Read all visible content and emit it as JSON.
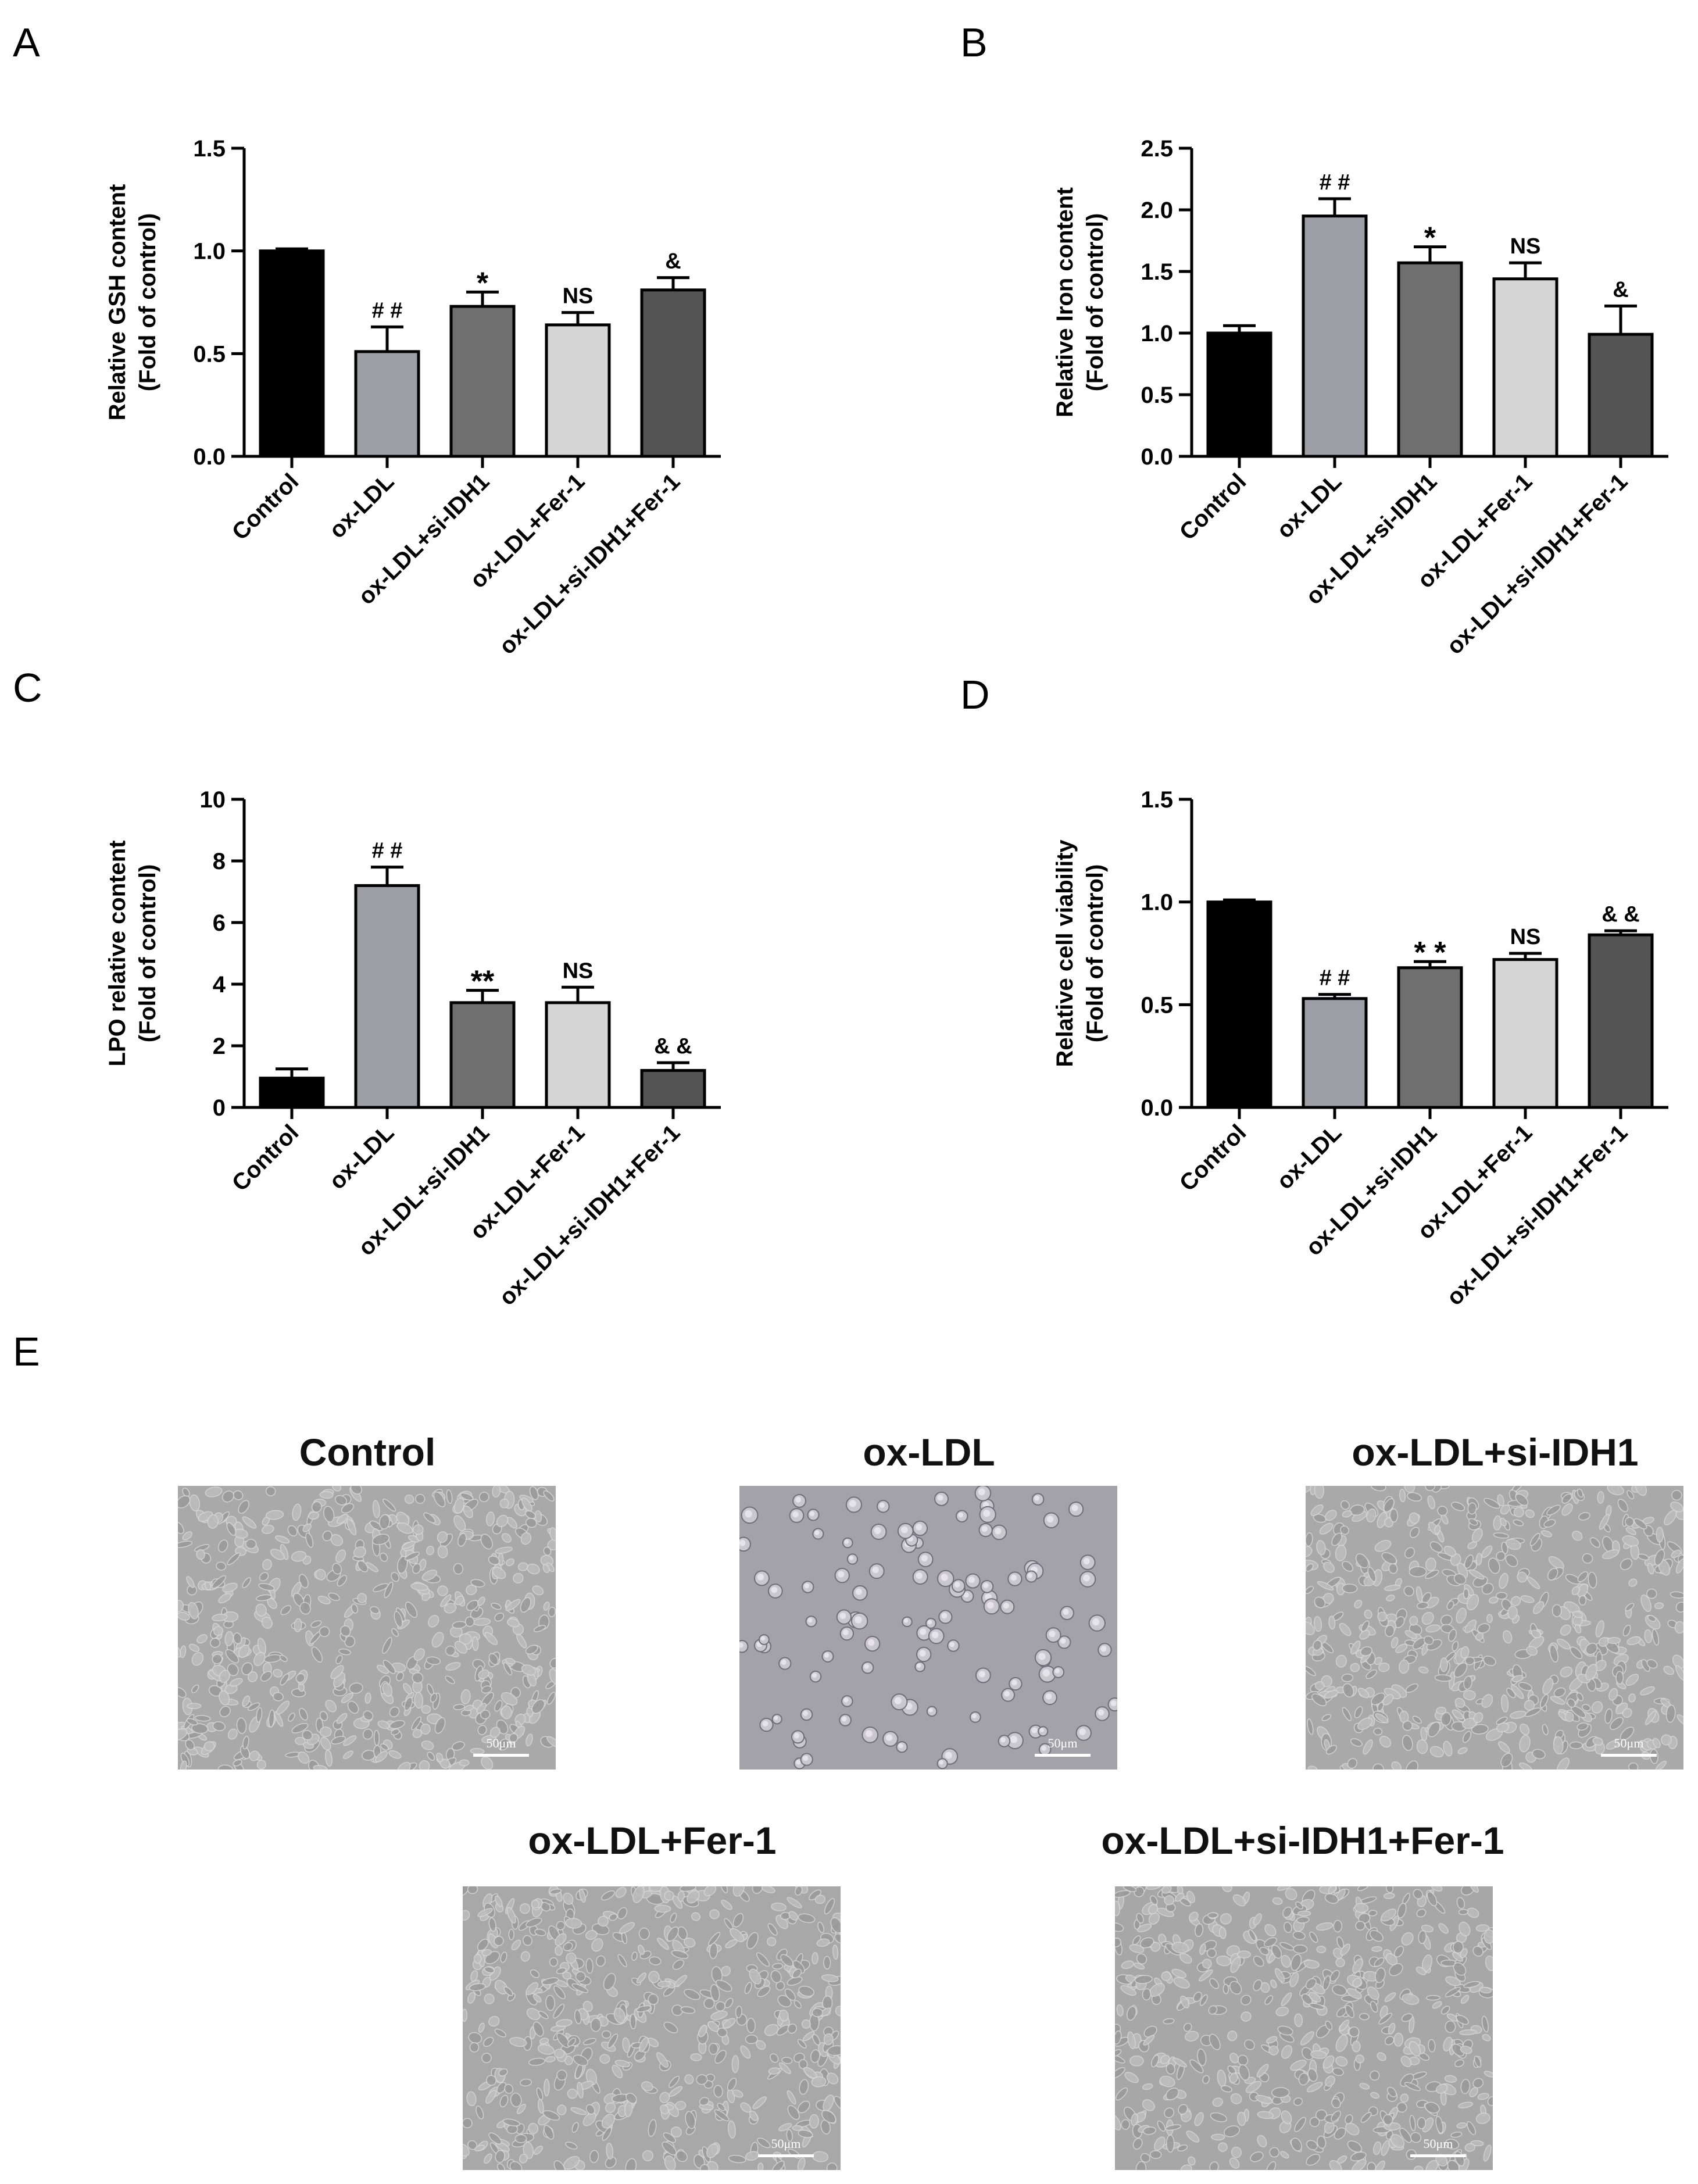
{
  "panels": {
    "A": "A",
    "B": "B",
    "C": "C",
    "D": "D",
    "E": "E"
  },
  "chart_data": [
    {
      "panel": "A",
      "type": "bar",
      "categories": [
        "Control",
        "ox-LDL",
        "ox-LDL+si-IDH1",
        "ox-LDL+Fer-1",
        "ox-LDL+si-IDH1+Fer-1"
      ],
      "values": [
        1.0,
        0.51,
        0.73,
        0.64,
        0.81
      ],
      "errors": [
        0.01,
        0.12,
        0.07,
        0.06,
        0.06
      ],
      "annotations": [
        "",
        "# #",
        "*",
        "NS",
        "&"
      ],
      "ylabel_line1": "Relative GSH content",
      "ylabel_line2": "(Fold of control)",
      "ylim": [
        0,
        1.5
      ],
      "yticks": [
        "0.0",
        "0.5",
        "1.0",
        "1.5"
      ],
      "colors": [
        "#000000",
        "#9e9ea7",
        "#6f6f6f",
        "#d5d5d5",
        "#545454"
      ]
    },
    {
      "panel": "B",
      "type": "bar",
      "categories": [
        "Control",
        "ox-LDL",
        "ox-LDL+si-IDH1",
        "ox-LDL+Fer-1",
        "ox-LDL+si-IDH1+Fer-1"
      ],
      "values": [
        1.0,
        1.95,
        1.57,
        1.44,
        0.99
      ],
      "errors": [
        0.06,
        0.14,
        0.13,
        0.13,
        0.23
      ],
      "annotations": [
        "",
        "# #",
        "*",
        "NS",
        "&"
      ],
      "ylabel_line1": "Relative Iron content",
      "ylabel_line2": "(Fold of control)",
      "ylim": [
        0,
        2.5
      ],
      "yticks": [
        "0.0",
        "0.5",
        "1.0",
        "1.5",
        "2.0",
        "2.5"
      ],
      "colors": [
        "#000000",
        "#9e9ea7",
        "#6f6f6f",
        "#d5d5d5",
        "#545454"
      ]
    },
    {
      "panel": "C",
      "type": "bar",
      "categories": [
        "Control",
        "ox-LDL",
        "ox-LDL+si-IDH1",
        "ox-LDL+Fer-1",
        "ox-LDL+si-IDH1+Fer-1"
      ],
      "values": [
        0.95,
        7.2,
        3.4,
        3.4,
        1.2
      ],
      "errors": [
        0.3,
        0.6,
        0.4,
        0.5,
        0.25
      ],
      "annotations": [
        "",
        "# #",
        "**",
        "NS",
        "& &"
      ],
      "ylabel_line1": "LPO relative content",
      "ylabel_line2": "(Fold of control)",
      "ylim": [
        0,
        10
      ],
      "yticks": [
        "0",
        "2",
        "4",
        "6",
        "8",
        "10"
      ],
      "colors": [
        "#000000",
        "#9e9ea7",
        "#6f6f6f",
        "#d5d5d5",
        "#545454"
      ]
    },
    {
      "panel": "D",
      "type": "bar",
      "categories": [
        "Control",
        "ox-LDL",
        "ox-LDL+si-IDH1",
        "ox-LDL+Fer-1",
        "ox-LDL+si-IDH1+Fer-1"
      ],
      "values": [
        1.0,
        0.53,
        0.68,
        0.72,
        0.84
      ],
      "errors": [
        0.01,
        0.02,
        0.03,
        0.03,
        0.02
      ],
      "annotations": [
        "",
        "# #",
        "* *",
        "NS",
        "& &"
      ],
      "ylabel_line1": "Relative cell viability",
      "ylabel_line2": "(Fold of control)",
      "ylim": [
        0,
        1.5
      ],
      "yticks": [
        "0.0",
        "0.5",
        "1.0",
        "1.5"
      ],
      "colors": [
        "#000000",
        "#9e9ea7",
        "#6f6f6f",
        "#d5d5d5",
        "#545454"
      ]
    }
  ],
  "micrographs": [
    {
      "title": "Control",
      "scale_label": "50μm",
      "density": "dense",
      "tone": "#a9a9a9"
    },
    {
      "title": "ox-LDL",
      "scale_label": "50μm",
      "density": "sparse",
      "tone": "#a3a2a9"
    },
    {
      "title": "ox-LDL+si-IDH1",
      "scale_label": "50μm",
      "density": "dense",
      "tone": "#a9a9a9"
    },
    {
      "title": "ox-LDL+Fer-1",
      "scale_label": "50μm",
      "density": "dense",
      "tone": "#a8a8a8"
    },
    {
      "title": "ox-LDL+si-IDH1+Fer-1",
      "scale_label": "50μm",
      "density": "dense",
      "tone": "#a7a7a7"
    }
  ]
}
